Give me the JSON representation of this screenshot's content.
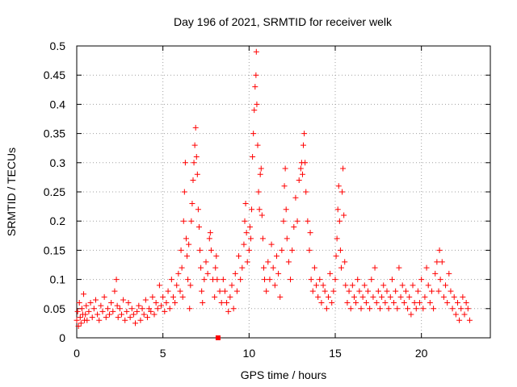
{
  "chart_data": {
    "type": "scatter",
    "title": "Day 196 of 2021, SRMTID for receiver welk",
    "xlabel": "GPS time / hours",
    "ylabel": "SRMTID / TECUs",
    "xlim": [
      0,
      24
    ],
    "ylim": [
      0,
      0.5
    ],
    "grid": true,
    "marker": "+",
    "color": "#ff0000",
    "x_ticks": [
      0,
      5,
      10,
      15,
      20
    ],
    "x_tick_labels": [
      "0",
      "5",
      "10",
      "15",
      "20"
    ],
    "y_ticks": [
      0,
      0.05,
      0.1,
      0.15,
      0.2,
      0.25,
      0.3,
      0.35,
      0.4,
      0.45,
      0.5
    ],
    "y_tick_labels": [
      "0",
      "0.05",
      "0.1",
      "0.15",
      "0.2",
      "0.25",
      "0.3",
      "0.35",
      "0.4",
      "0.45",
      "0.5"
    ],
    "zero_marker": {
      "x": 8.2,
      "y": 0.0
    },
    "series": [
      {
        "name": "SRMTID",
        "points": [
          [
            0.0,
            0.03
          ],
          [
            0.05,
            0.045
          ],
          [
            0.1,
            0.02
          ],
          [
            0.15,
            0.06
          ],
          [
            0.2,
            0.035
          ],
          [
            0.25,
            0.025
          ],
          [
            0.3,
            0.05
          ],
          [
            0.35,
            0.04
          ],
          [
            0.4,
            0.075
          ],
          [
            0.45,
            0.03
          ],
          [
            0.5,
            0.04
          ],
          [
            0.55,
            0.055
          ],
          [
            0.6,
            0.03
          ],
          [
            0.7,
            0.045
          ],
          [
            0.8,
            0.06
          ],
          [
            0.9,
            0.035
          ],
          [
            1.0,
            0.05
          ],
          [
            1.1,
            0.065
          ],
          [
            1.2,
            0.04
          ],
          [
            1.3,
            0.03
          ],
          [
            1.4,
            0.055
          ],
          [
            1.5,
            0.045
          ],
          [
            1.6,
            0.07
          ],
          [
            1.7,
            0.035
          ],
          [
            1.8,
            0.05
          ],
          [
            1.9,
            0.04
          ],
          [
            2.0,
            0.06
          ],
          [
            2.1,
            0.045
          ],
          [
            2.2,
            0.08
          ],
          [
            2.3,
            0.1
          ],
          [
            2.35,
            0.055
          ],
          [
            2.4,
            0.035
          ],
          [
            2.5,
            0.05
          ],
          [
            2.6,
            0.04
          ],
          [
            2.7,
            0.065
          ],
          [
            2.8,
            0.03
          ],
          [
            2.9,
            0.045
          ],
          [
            3.0,
            0.06
          ],
          [
            3.1,
            0.035
          ],
          [
            3.2,
            0.05
          ],
          [
            3.3,
            0.04
          ],
          [
            3.4,
            0.025
          ],
          [
            3.5,
            0.045
          ],
          [
            3.6,
            0.055
          ],
          [
            3.7,
            0.03
          ],
          [
            3.8,
            0.05
          ],
          [
            3.9,
            0.04
          ],
          [
            4.0,
            0.065
          ],
          [
            4.1,
            0.035
          ],
          [
            4.2,
            0.05
          ],
          [
            4.3,
            0.045
          ],
          [
            4.4,
            0.07
          ],
          [
            4.5,
            0.04
          ],
          [
            4.6,
            0.06
          ],
          [
            4.7,
            0.05
          ],
          [
            4.8,
            0.09
          ],
          [
            4.9,
            0.055
          ],
          [
            5.0,
            0.07
          ],
          [
            5.1,
            0.045
          ],
          [
            5.2,
            0.06
          ],
          [
            5.3,
            0.08
          ],
          [
            5.4,
            0.05
          ],
          [
            5.5,
            0.1
          ],
          [
            5.6,
            0.07
          ],
          [
            5.7,
            0.06
          ],
          [
            5.8,
            0.09
          ],
          [
            5.9,
            0.11
          ],
          [
            6.0,
            0.08
          ],
          [
            6.05,
            0.15
          ],
          [
            6.1,
            0.12
          ],
          [
            6.15,
            0.07
          ],
          [
            6.2,
            0.2
          ],
          [
            6.25,
            0.25
          ],
          [
            6.3,
            0.3
          ],
          [
            6.35,
            0.17
          ],
          [
            6.4,
            0.14
          ],
          [
            6.45,
            0.1
          ],
          [
            6.5,
            0.16
          ],
          [
            6.55,
            0.05
          ],
          [
            6.6,
            0.09
          ],
          [
            6.65,
            0.2
          ],
          [
            6.7,
            0.23
          ],
          [
            6.75,
            0.27
          ],
          [
            6.8,
            0.3
          ],
          [
            6.85,
            0.33
          ],
          [
            6.9,
            0.36
          ],
          [
            6.95,
            0.31
          ],
          [
            7.0,
            0.28
          ],
          [
            7.05,
            0.22
          ],
          [
            7.1,
            0.19
          ],
          [
            7.15,
            0.15
          ],
          [
            7.2,
            0.12
          ],
          [
            7.25,
            0.08
          ],
          [
            7.3,
            0.06
          ],
          [
            7.4,
            0.1
          ],
          [
            7.5,
            0.13
          ],
          [
            7.6,
            0.11
          ],
          [
            7.7,
            0.17
          ],
          [
            7.75,
            0.18
          ],
          [
            7.8,
            0.15
          ],
          [
            7.9,
            0.1
          ],
          [
            8.0,
            0.07
          ],
          [
            8.05,
            0.12
          ],
          [
            8.1,
            0.14
          ],
          [
            8.15,
            0.1
          ],
          [
            8.3,
            0.08
          ],
          [
            8.4,
            0.06
          ],
          [
            8.5,
            0.1
          ],
          [
            8.6,
            0.08
          ],
          [
            8.7,
            0.06
          ],
          [
            8.8,
            0.045
          ],
          [
            8.9,
            0.07
          ],
          [
            9.0,
            0.09
          ],
          [
            9.1,
            0.05
          ],
          [
            9.2,
            0.11
          ],
          [
            9.3,
            0.08
          ],
          [
            9.4,
            0.14
          ],
          [
            9.5,
            0.1
          ],
          [
            9.6,
            0.12
          ],
          [
            9.7,
            0.16
          ],
          [
            9.75,
            0.2
          ],
          [
            9.8,
            0.23
          ],
          [
            9.85,
            0.18
          ],
          [
            9.9,
            0.13
          ],
          [
            10.0,
            0.15
          ],
          [
            10.05,
            0.19
          ],
          [
            10.1,
            0.17
          ],
          [
            10.15,
            0.22
          ],
          [
            10.2,
            0.31
          ],
          [
            10.25,
            0.35
          ],
          [
            10.3,
            0.39
          ],
          [
            10.35,
            0.43
          ],
          [
            10.4,
            0.45
          ],
          [
            10.42,
            0.49
          ],
          [
            10.45,
            0.4
          ],
          [
            10.5,
            0.33
          ],
          [
            10.55,
            0.25
          ],
          [
            10.6,
            0.22
          ],
          [
            10.65,
            0.28
          ],
          [
            10.7,
            0.29
          ],
          [
            10.75,
            0.21
          ],
          [
            10.8,
            0.17
          ],
          [
            10.85,
            0.12
          ],
          [
            10.9,
            0.1
          ],
          [
            11.0,
            0.08
          ],
          [
            11.1,
            0.13
          ],
          [
            11.2,
            0.1
          ],
          [
            11.3,
            0.16
          ],
          [
            11.4,
            0.12
          ],
          [
            11.5,
            0.09
          ],
          [
            11.6,
            0.14
          ],
          [
            11.7,
            0.11
          ],
          [
            11.8,
            0.07
          ],
          [
            11.9,
            0.15
          ],
          [
            12.0,
            0.2
          ],
          [
            12.05,
            0.26
          ],
          [
            12.1,
            0.29
          ],
          [
            12.15,
            0.22
          ],
          [
            12.2,
            0.17
          ],
          [
            12.3,
            0.13
          ],
          [
            12.4,
            0.1
          ],
          [
            12.5,
            0.15
          ],
          [
            12.6,
            0.19
          ],
          [
            12.7,
            0.24
          ],
          [
            12.8,
            0.2
          ],
          [
            12.9,
            0.27
          ],
          [
            13.0,
            0.29
          ],
          [
            13.05,
            0.3
          ],
          [
            13.1,
            0.28
          ],
          [
            13.15,
            0.33
          ],
          [
            13.2,
            0.35
          ],
          [
            13.25,
            0.3
          ],
          [
            13.3,
            0.25
          ],
          [
            13.4,
            0.2
          ],
          [
            13.5,
            0.15
          ],
          [
            13.55,
            0.18
          ],
          [
            13.6,
            0.1
          ],
          [
            13.7,
            0.08
          ],
          [
            13.8,
            0.12
          ],
          [
            13.9,
            0.09
          ],
          [
            14.0,
            0.07
          ],
          [
            14.1,
            0.1
          ],
          [
            14.2,
            0.06
          ],
          [
            14.3,
            0.09
          ],
          [
            14.4,
            0.08
          ],
          [
            14.5,
            0.05
          ],
          [
            14.6,
            0.07
          ],
          [
            14.7,
            0.11
          ],
          [
            14.8,
            0.06
          ],
          [
            14.9,
            0.08
          ],
          [
            15.0,
            0.1
          ],
          [
            15.05,
            0.14
          ],
          [
            15.1,
            0.17
          ],
          [
            15.15,
            0.22
          ],
          [
            15.2,
            0.26
          ],
          [
            15.25,
            0.2
          ],
          [
            15.3,
            0.15
          ],
          [
            15.35,
            0.12
          ],
          [
            15.4,
            0.25
          ],
          [
            15.45,
            0.29
          ],
          [
            15.5,
            0.21
          ],
          [
            15.55,
            0.13
          ],
          [
            15.6,
            0.09
          ],
          [
            15.7,
            0.06
          ],
          [
            15.8,
            0.08
          ],
          [
            15.9,
            0.05
          ],
          [
            16.0,
            0.09
          ],
          [
            16.1,
            0.07
          ],
          [
            16.2,
            0.06
          ],
          [
            16.3,
            0.1
          ],
          [
            16.4,
            0.08
          ],
          [
            16.5,
            0.05
          ],
          [
            16.6,
            0.07
          ],
          [
            16.7,
            0.09
          ],
          [
            16.8,
            0.06
          ],
          [
            16.9,
            0.08
          ],
          [
            17.0,
            0.05
          ],
          [
            17.1,
            0.1
          ],
          [
            17.2,
            0.07
          ],
          [
            17.3,
            0.12
          ],
          [
            17.4,
            0.06
          ],
          [
            17.5,
            0.08
          ],
          [
            17.6,
            0.05
          ],
          [
            17.7,
            0.07
          ],
          [
            17.8,
            0.09
          ],
          [
            17.9,
            0.06
          ],
          [
            18.0,
            0.08
          ],
          [
            18.1,
            0.05
          ],
          [
            18.2,
            0.07
          ],
          [
            18.3,
            0.1
          ],
          [
            18.4,
            0.06
          ],
          [
            18.5,
            0.08
          ],
          [
            18.6,
            0.05
          ],
          [
            18.7,
            0.12
          ],
          [
            18.8,
            0.07
          ],
          [
            18.9,
            0.09
          ],
          [
            19.0,
            0.06
          ],
          [
            19.1,
            0.08
          ],
          [
            19.2,
            0.05
          ],
          [
            19.3,
            0.07
          ],
          [
            19.4,
            0.04
          ],
          [
            19.5,
            0.09
          ],
          [
            19.6,
            0.06
          ],
          [
            19.7,
            0.05
          ],
          [
            19.8,
            0.08
          ],
          [
            19.9,
            0.06
          ],
          [
            20.0,
            0.1
          ],
          [
            20.1,
            0.05
          ],
          [
            20.2,
            0.07
          ],
          [
            20.3,
            0.12
          ],
          [
            20.4,
            0.09
          ],
          [
            20.5,
            0.06
          ],
          [
            20.6,
            0.08
          ],
          [
            20.7,
            0.05
          ],
          [
            20.8,
            0.11
          ],
          [
            20.9,
            0.13
          ],
          [
            21.0,
            0.08
          ],
          [
            21.05,
            0.15
          ],
          [
            21.1,
            0.1
          ],
          [
            21.2,
            0.13
          ],
          [
            21.3,
            0.07
          ],
          [
            21.4,
            0.09
          ],
          [
            21.5,
            0.06
          ],
          [
            21.6,
            0.11
          ],
          [
            21.7,
            0.08
          ],
          [
            21.8,
            0.05
          ],
          [
            21.9,
            0.07
          ],
          [
            22.0,
            0.04
          ],
          [
            22.1,
            0.06
          ],
          [
            22.2,
            0.03
          ],
          [
            22.3,
            0.05
          ],
          [
            22.4,
            0.07
          ],
          [
            22.5,
            0.04
          ],
          [
            22.6,
            0.06
          ],
          [
            22.7,
            0.05
          ],
          [
            22.8,
            0.03
          ]
        ]
      }
    ]
  }
}
